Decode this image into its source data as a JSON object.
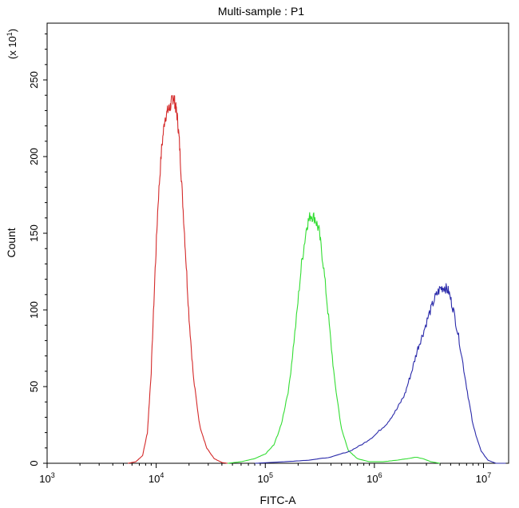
{
  "chart_data": {
    "type": "line",
    "title": "Multi-sample : P1",
    "xlabel": "FITC-A",
    "ylabel": "Count",
    "y_multiplier_label": "(x 10",
    "y_multiplier_exp": "1",
    "x_scale": "log",
    "xlim": [
      1000,
      17000000
    ],
    "ylim": [
      0,
      287
    ],
    "x_ticks": [
      {
        "base": "10",
        "exp": "3",
        "value": 1000
      },
      {
        "base": "10",
        "exp": "4",
        "value": 10000
      },
      {
        "base": "10",
        "exp": "5",
        "value": 100000
      },
      {
        "base": "10",
        "exp": "6",
        "value": 1000000
      },
      {
        "base": "10",
        "exp": "7",
        "value": 10000000
      }
    ],
    "y_ticks": [
      {
        "label": "0",
        "value": 0
      },
      {
        "label": "50",
        "value": 50
      },
      {
        "label": "100",
        "value": 100
      },
      {
        "label": "150",
        "value": 150
      },
      {
        "label": "200",
        "value": 200
      },
      {
        "label": "250",
        "value": 250
      }
    ],
    "grid": false,
    "series": [
      {
        "color": "#d42a2a",
        "points": [
          [
            5500,
            0
          ],
          [
            6500,
            1
          ],
          [
            7500,
            5
          ],
          [
            8300,
            20
          ],
          [
            9000,
            60
          ],
          [
            9700,
            120
          ],
          [
            10400,
            170
          ],
          [
            11200,
            205
          ],
          [
            12000,
            225
          ],
          [
            12800,
            230
          ],
          [
            13400,
            232
          ],
          [
            14000,
            237
          ],
          [
            14500,
            239
          ],
          [
            15000,
            233
          ],
          [
            15600,
            226
          ],
          [
            16300,
            210
          ],
          [
            17200,
            180
          ],
          [
            18500,
            140
          ],
          [
            20000,
            95
          ],
          [
            22000,
            55
          ],
          [
            25000,
            25
          ],
          [
            29000,
            10
          ],
          [
            34000,
            3
          ],
          [
            40000,
            0.5
          ],
          [
            45000,
            0
          ]
        ]
      },
      {
        "color": "#33dd33",
        "points": [
          [
            45000,
            0
          ],
          [
            60000,
            1
          ],
          [
            80000,
            3
          ],
          [
            100000,
            6
          ],
          [
            120000,
            12
          ],
          [
            140000,
            25
          ],
          [
            165000,
            50
          ],
          [
            190000,
            90
          ],
          [
            215000,
            130
          ],
          [
            240000,
            155
          ],
          [
            260000,
            162
          ],
          [
            285000,
            160
          ],
          [
            310000,
            152
          ],
          [
            340000,
            130
          ],
          [
            380000,
            95
          ],
          [
            430000,
            55
          ],
          [
            500000,
            22
          ],
          [
            580000,
            8
          ],
          [
            700000,
            3
          ],
          [
            900000,
            1
          ],
          [
            1200000,
            1
          ],
          [
            1600000,
            2
          ],
          [
            2000000,
            3
          ],
          [
            2400000,
            4
          ],
          [
            2800000,
            3
          ],
          [
            3300000,
            1
          ],
          [
            4000000,
            0
          ]
        ]
      },
      {
        "color": "#2a2aaa",
        "points": [
          [
            80000,
            0
          ],
          [
            150000,
            1
          ],
          [
            250000,
            2
          ],
          [
            400000,
            4
          ],
          [
            600000,
            8
          ],
          [
            800000,
            13
          ],
          [
            1000000,
            18
          ],
          [
            1300000,
            26
          ],
          [
            1600000,
            35
          ],
          [
            1900000,
            45
          ],
          [
            2200000,
            60
          ],
          [
            2500000,
            75
          ],
          [
            2800000,
            85
          ],
          [
            3200000,
            98
          ],
          [
            3600000,
            108
          ],
          [
            4000000,
            114
          ],
          [
            4400000,
            115
          ],
          [
            4800000,
            112
          ],
          [
            5300000,
            100
          ],
          [
            6000000,
            80
          ],
          [
            7000000,
            50
          ],
          [
            8000000,
            25
          ],
          [
            9500000,
            8
          ],
          [
            11000000,
            2
          ],
          [
            13000000,
            0
          ],
          [
            16000000,
            0
          ]
        ]
      }
    ]
  }
}
